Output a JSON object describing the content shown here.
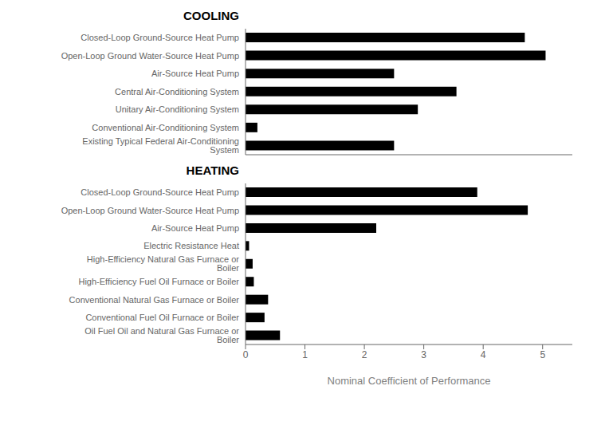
{
  "chart_data": [
    {
      "type": "bar",
      "title": "COOLING",
      "orientation": "horizontal",
      "categories": [
        "Closed-Loop Ground-Source Heat Pump",
        "Open-Loop Ground Water-Source Heat Pump",
        "Air-Source Heat Pump",
        "Central Air-Conditioning System",
        "Unitary Air-Conditioning System",
        "Conventional Air-Conditioning System",
        "Existing Typical Federal Air-Conditioning System"
      ],
      "values": [
        4.7,
        5.05,
        2.5,
        3.55,
        2.9,
        0.2,
        2.5
      ],
      "color": "#000000",
      "xlim": [
        0,
        5.5
      ],
      "tick_labels": "y"
    },
    {
      "type": "bar",
      "title": "HEATING",
      "orientation": "horizontal",
      "categories": [
        "Closed-Loop Ground-Source Heat Pump",
        "Open-Loop Ground Water-Source Heat Pump",
        "Air-Source Heat Pump",
        "Electric Resistance Heat",
        "High-Efficiency Natural Gas Furnace or Boiler",
        "High-Efficiency Fuel Oil Furnace or Boiler",
        "Conventional Natural Gas Furnace or Boiler",
        "Conventional Fuel Oil Furnace or Boiler",
        "Oil Fuel Oil and Natural Gas Furnace or Boiler"
      ],
      "values": [
        3.9,
        4.75,
        2.2,
        0.06,
        0.12,
        0.14,
        0.38,
        0.32,
        0.58
      ],
      "color": "#000000",
      "xlim": [
        0,
        5.5
      ],
      "xticks": [
        0,
        1,
        2,
        3,
        4,
        5
      ],
      "xlabel": "Nominal Coefficient of Performance"
    }
  ]
}
